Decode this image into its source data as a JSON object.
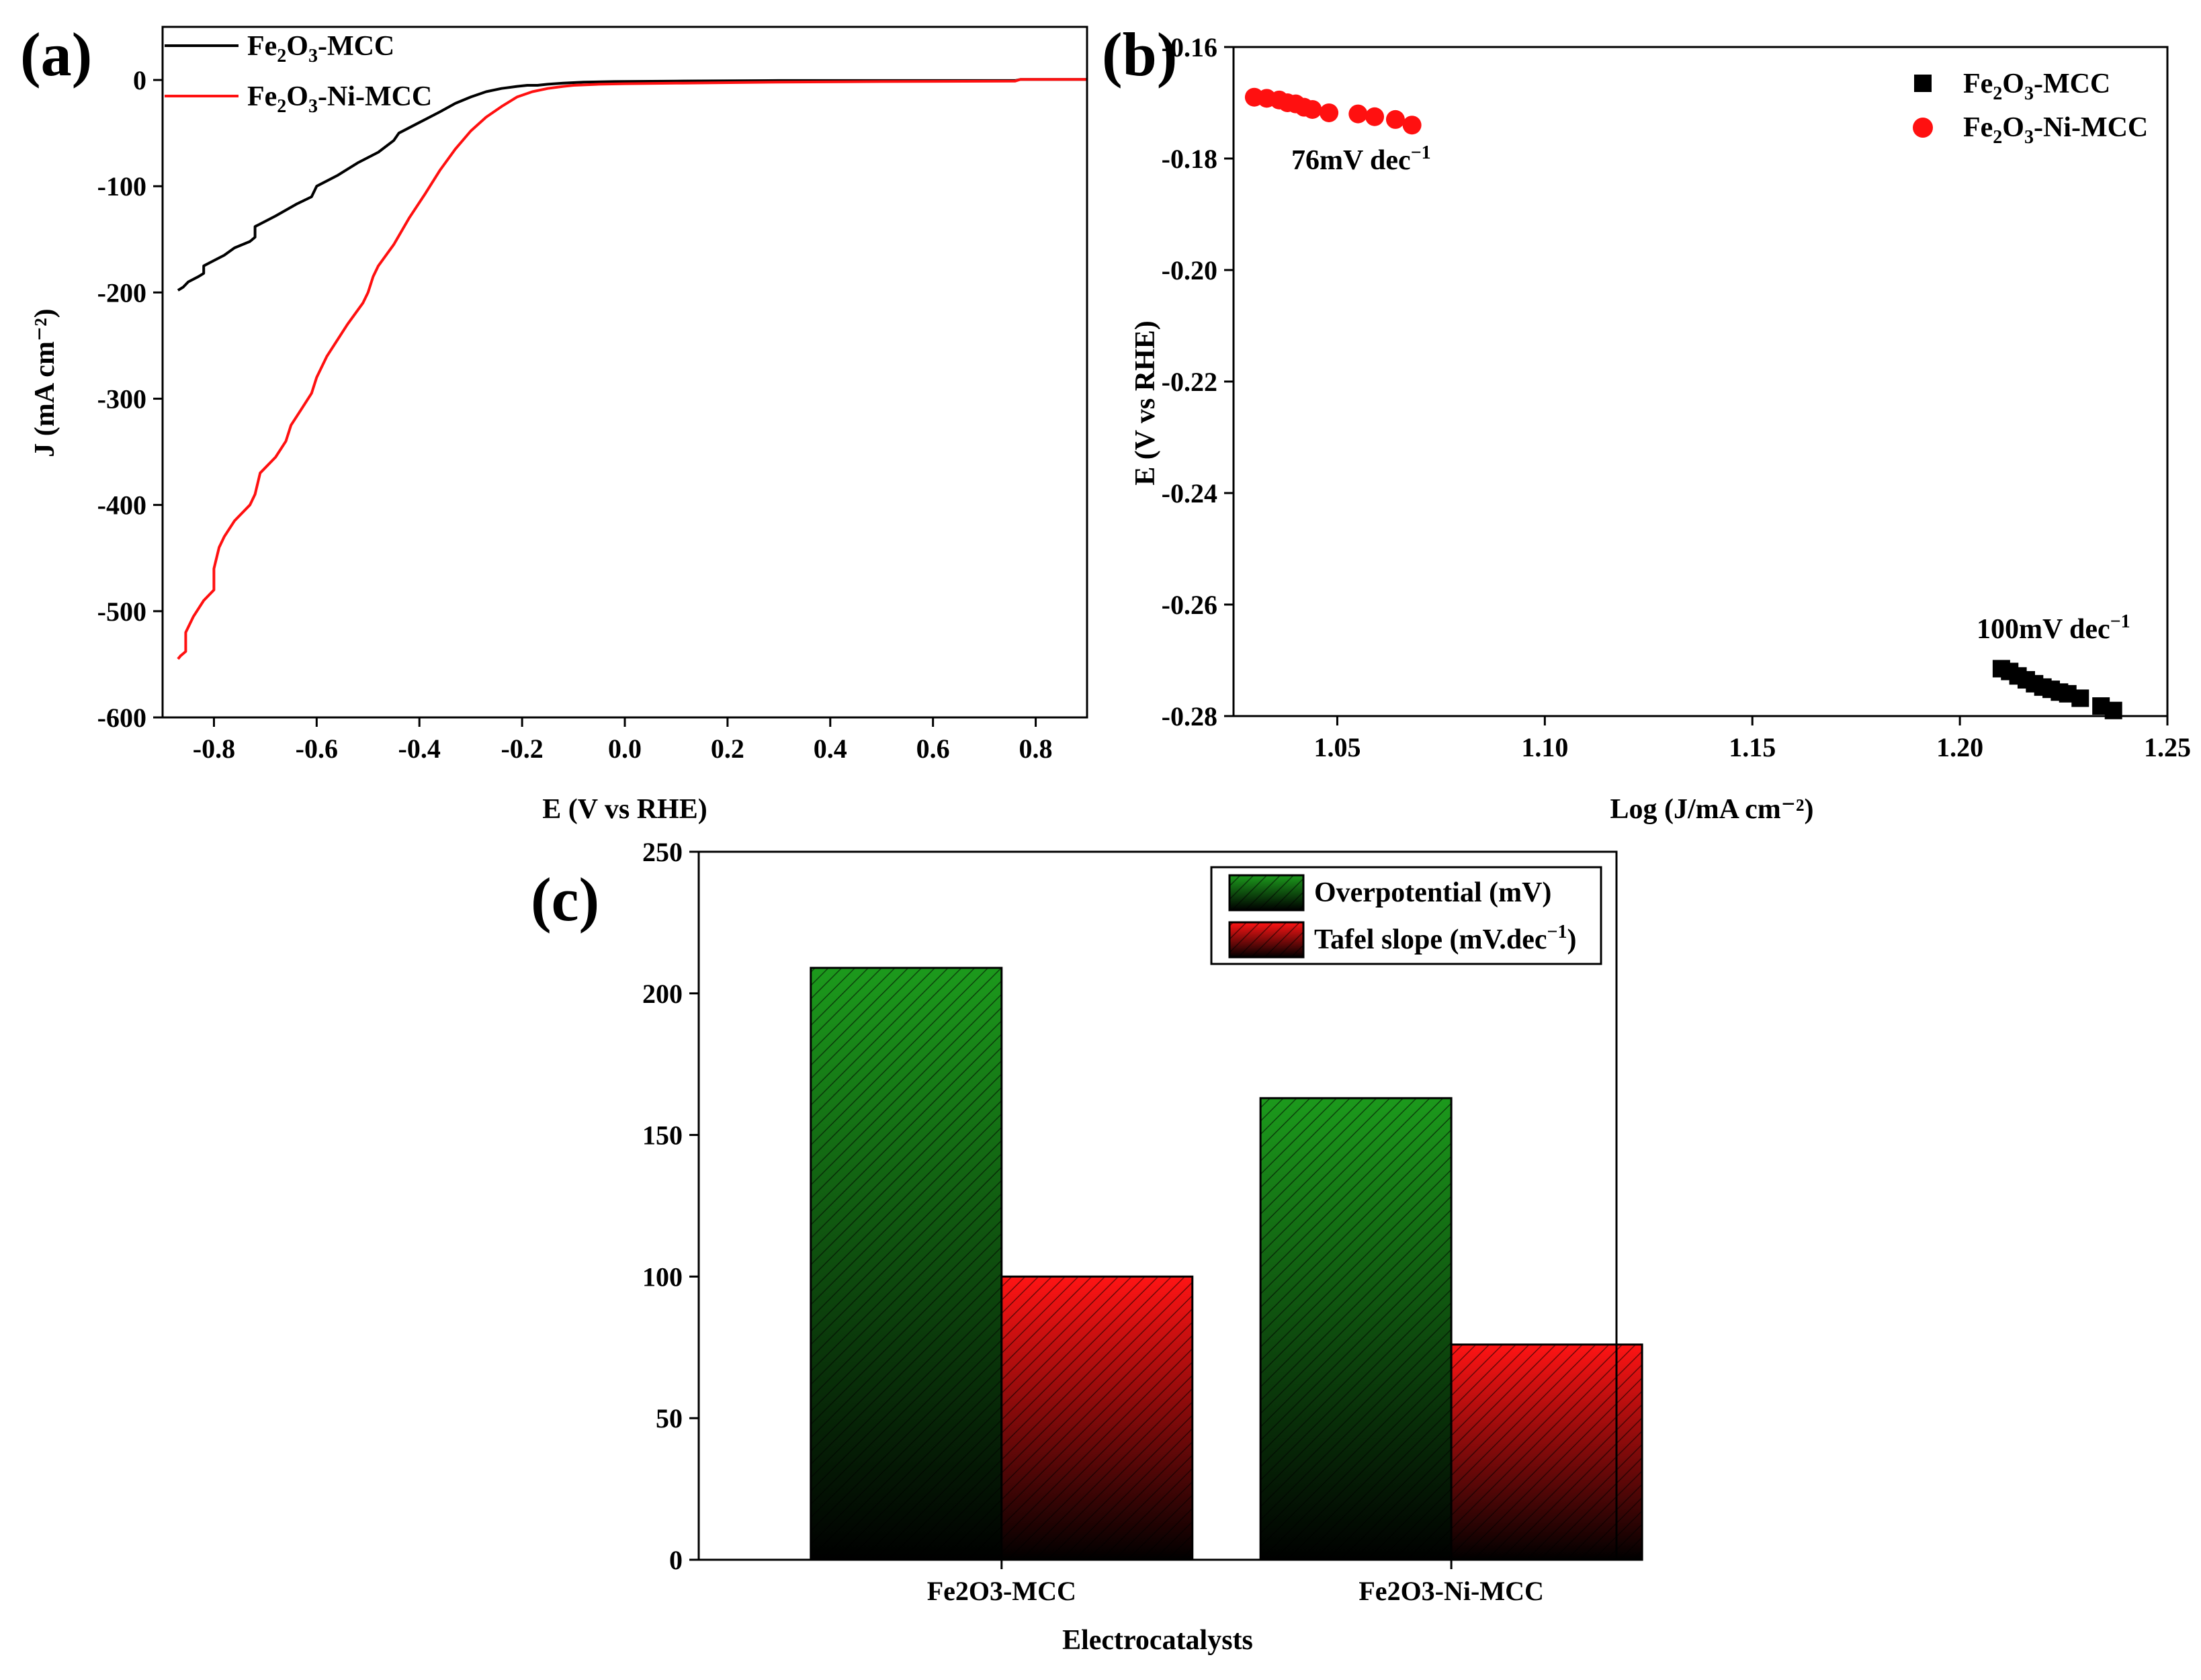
{
  "chart_data": [
    {
      "panel": "(a)",
      "type": "line",
      "xlabel": "E (V vs RHE)",
      "ylabel": "J (mA cm⁻²)",
      "xlim": [
        -0.9,
        0.9
      ],
      "ylim": [
        -600,
        50
      ],
      "xticks": [
        "-0.8",
        "-0.6",
        "-0.4",
        "-0.2",
        "0.0",
        "0.2",
        "0.4",
        "0.6",
        "0.8"
      ],
      "yticks": [
        "0",
        "-100",
        "-200",
        "-300",
        "-400",
        "-500",
        "-600"
      ],
      "series": [
        {
          "name": "Fe2O3-MCC",
          "legend_main": "Fe",
          "legend_sub1": "2",
          "legend_mid": "O",
          "legend_sub2": "3",
          "legend_tail": "-MCC",
          "color": "#000000",
          "x": [
            -0.87,
            -0.86,
            -0.85,
            -0.83,
            -0.82,
            -0.82,
            -0.8,
            -0.78,
            -0.76,
            -0.73,
            -0.72,
            -0.72,
            -0.68,
            -0.64,
            -0.61,
            -0.6,
            -0.56,
            -0.52,
            -0.48,
            -0.45,
            -0.44,
            -0.4,
            -0.36,
            -0.33,
            -0.3,
            -0.27,
            -0.24,
            -0.21,
            -0.19,
            -0.17,
            -0.15,
            -0.12,
            -0.08,
            -0.02,
            0.1,
            0.3,
            0.5,
            0.76,
            0.77,
            0.9
          ],
          "y": [
            -198,
            -195,
            -190,
            -185,
            -182,
            -175,
            -170,
            -165,
            -158,
            -152,
            -148,
            -138,
            -128,
            -117,
            -110,
            -100,
            -90,
            -78,
            -68,
            -57,
            -50,
            -40,
            -30,
            -22,
            -16,
            -11,
            -8,
            -6,
            -5,
            -5,
            -4,
            -3,
            -2,
            -1.5,
            -1,
            -0.5,
            -0.5,
            -0.5,
            0.5,
            0.5
          ]
        },
        {
          "name": "Fe2O3-Ni-MCC",
          "legend_main": "Fe",
          "legend_sub1": "2",
          "legend_mid": "O",
          "legend_sub2": "3",
          "legend_tail": "-Ni-MCC",
          "color": "#ff1010",
          "x": [
            -0.87,
            -0.865,
            -0.86,
            -0.855,
            -0.855,
            -0.84,
            -0.82,
            -0.8,
            -0.8,
            -0.79,
            -0.78,
            -0.76,
            -0.73,
            -0.72,
            -0.71,
            -0.68,
            -0.66,
            -0.65,
            -0.63,
            -0.61,
            -0.6,
            -0.58,
            -0.54,
            -0.51,
            -0.5,
            -0.49,
            -0.48,
            -0.45,
            -0.42,
            -0.39,
            -0.36,
            -0.33,
            -0.3,
            -0.27,
            -0.24,
            -0.21,
            -0.18,
            -0.15,
            -0.12,
            -0.1,
            -0.05,
            0.0,
            0.1,
            0.3,
            0.5,
            0.76,
            0.77,
            0.9
          ],
          "y": [
            -545,
            -542,
            -540,
            -538,
            -520,
            -505,
            -490,
            -480,
            -460,
            -440,
            -430,
            -415,
            -400,
            -390,
            -370,
            -355,
            -340,
            -325,
            -310,
            -295,
            -280,
            -260,
            -230,
            -210,
            -200,
            -185,
            -175,
            -155,
            -130,
            -108,
            -85,
            -65,
            -48,
            -35,
            -25,
            -16,
            -11,
            -8,
            -6,
            -5,
            -4,
            -3.5,
            -3,
            -2,
            -1.5,
            -1,
            0.5,
            0.5
          ]
        }
      ]
    },
    {
      "panel": "(b)",
      "type": "scatter",
      "xlabel": "Log (J/mA cm⁻²)",
      "ylabel": "E (V vs RHE)",
      "xlim": [
        1.025,
        1.25
      ],
      "ylim": [
        -0.28,
        -0.16
      ],
      "xticks": [
        "1.05",
        "1.10",
        "1.15",
        "1.20",
        "1.25"
      ],
      "yticks": [
        "-0.16",
        "-0.18",
        "-0.20",
        "-0.22",
        "-0.24",
        "-0.26",
        "-0.28"
      ],
      "series": [
        {
          "name": "Fe2O3-MCC",
          "marker": "square",
          "color": "#000000",
          "x": [
            1.21,
            1.212,
            1.214,
            1.216,
            1.218,
            1.22,
            1.222,
            1.224,
            1.226,
            1.229,
            1.234,
            1.237
          ],
          "y": [
            -0.2715,
            -0.272,
            -0.2728,
            -0.2735,
            -0.2742,
            -0.2748,
            -0.2752,
            -0.2757,
            -0.276,
            -0.2768,
            -0.2782,
            -0.279
          ]
        },
        {
          "name": "Fe2O3-Ni-MCC",
          "marker": "circle",
          "color": "#ff1010",
          "x": [
            1.03,
            1.033,
            1.036,
            1.038,
            1.04,
            1.042,
            1.044,
            1.048,
            1.055,
            1.059,
            1.064,
            1.068
          ],
          "y": [
            -0.169,
            -0.1692,
            -0.1695,
            -0.17,
            -0.1702,
            -0.1708,
            -0.1712,
            -0.1718,
            -0.172,
            -0.1725,
            -0.173,
            -0.174
          ]
        }
      ],
      "legend": [
        "Fe2O3-MCC",
        "Fe2O3-Ni-MCC"
      ],
      "annotations": [
        {
          "text_main": "76mV dec",
          "text_sup": "−1",
          "at_x": 1.03,
          "at_y": -0.1765
        },
        {
          "text_main": "100mV dec",
          "text_sup": "−1",
          "at_x": 1.205,
          "at_y": -0.2665
        }
      ]
    },
    {
      "panel": "(c)",
      "type": "bar",
      "xlabel": "Electrocatalysts",
      "ylabel": "",
      "categories": [
        "Fe2O3-MCC",
        "Fe2O3-Ni-MCC"
      ],
      "ylim": [
        0,
        250
      ],
      "yticks": [
        "0",
        "50",
        "100",
        "150",
        "200",
        "250"
      ],
      "series": [
        {
          "name": "Overpotential (mV)",
          "color": "#1a8a1a",
          "values": [
            209,
            163
          ]
        },
        {
          "name": "Tafel slope (mV.dec",
          "name_sup": "−1",
          "name_tail": ")",
          "color": "#ff1010",
          "values": [
            100,
            76
          ]
        }
      ]
    }
  ]
}
